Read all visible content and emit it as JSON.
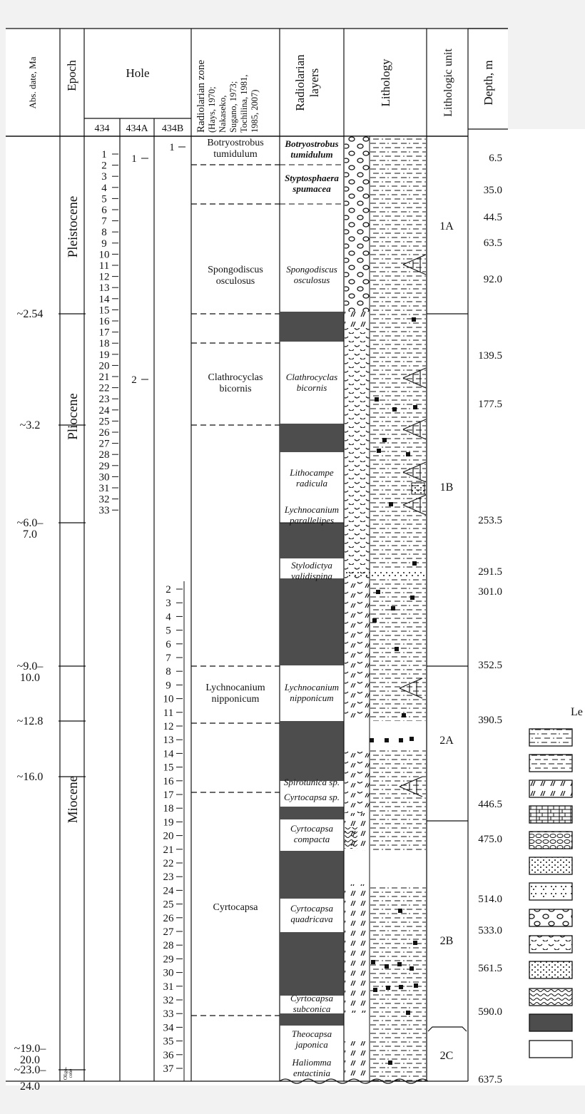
{
  "headers": {
    "abs_date": "Abs. date, Ma",
    "epoch": "Epoch",
    "hole": "Hole",
    "hole_cols": [
      "434",
      "434A",
      "434B"
    ],
    "zone_lines": [
      "Radiolarian zone",
      "(Hays, 1970;",
      "Nakaseko,",
      "Sugano, 1973;",
      "Tochilina, 1981,",
      "1985, 2007)"
    ],
    "layers_lines": [
      "Radiolarian",
      "layers"
    ],
    "lithology": "Lithology",
    "unit": "Lithologic unit",
    "depth": "Depth, m"
  },
  "legend_title": "Le",
  "ages": [
    {
      "lines": [
        "~2.54"
      ]
    },
    {
      "lines": [
        "~3.2"
      ]
    },
    {
      "lines": [
        "~6.0–",
        "7.0"
      ]
    },
    {
      "lines": [
        "~9.0–",
        "10.0"
      ]
    },
    {
      "lines": [
        "~12.8"
      ]
    },
    {
      "lines": [
        "~16.0"
      ]
    },
    {
      "lines": [
        "~19.0–",
        "20.0"
      ]
    },
    {
      "lines": [
        "~23.0–"
      ]
    },
    {
      "lines": [
        "24.0"
      ]
    }
  ],
  "epochs": [
    "Pleistocene",
    "Pliocene",
    "Miocene"
  ],
  "epoch_oligocene_lines": [
    "Oligo-",
    "cene"
  ],
  "hole434_cores": [
    "1",
    "2",
    "3",
    "4",
    "5",
    "6",
    "7",
    "8",
    "9",
    "10",
    "11",
    "12",
    "13",
    "14",
    "15",
    "16",
    "17",
    "18",
    "19",
    "20",
    "21",
    "22",
    "23",
    "24",
    "25",
    "26",
    "27",
    "28",
    "29",
    "30",
    "31",
    "32",
    "33"
  ],
  "hole434a_cores": [
    "1",
    "2"
  ],
  "hole434b_cores": [
    "1",
    "2",
    "3",
    "4",
    "5",
    "6",
    "7",
    "8",
    "9",
    "10",
    "11",
    "12",
    "13",
    "14",
    "15",
    "16",
    "17",
    "18",
    "19",
    "20",
    "21",
    "22",
    "23",
    "24",
    "25",
    "26",
    "27",
    "28",
    "29",
    "30",
    "31",
    "32",
    "33",
    "34",
    "35",
    "36",
    "37"
  ],
  "zones": [
    {
      "lines": [
        "Botryostrobus",
        "tumidulum"
      ]
    },
    {
      "lines": [
        "Spongodiscus",
        "osculosus"
      ]
    },
    {
      "lines": [
        "Clathrocyclas",
        "bicornis"
      ]
    },
    {
      "lines": [
        "Lychnocanium",
        "nipponicum"
      ]
    },
    {
      "lines": [
        "Cyrtocapsa"
      ]
    }
  ],
  "layers": [
    {
      "lines": [
        "Botryostrobus",
        "tumidulum"
      ]
    },
    {
      "lines": [
        "Styptosphaera",
        "spumacea"
      ]
    },
    {
      "lines": [
        "Spongodiscus",
        "osculosus"
      ]
    },
    {
      "lines": [
        "Clathrocyclas",
        "bicornis"
      ]
    },
    {
      "lines": [
        "Lithocampe",
        "radicula"
      ]
    },
    {
      "lines": [
        "Lychnocanium",
        "parallelipes"
      ]
    },
    {
      "lines": [
        "Stylodictya",
        "validispina"
      ]
    },
    {
      "lines": [
        "Lychnocanium",
        "nipponicum"
      ]
    },
    {
      "lines": [
        "Spirotunica sp."
      ]
    },
    {
      "lines": [
        "Cyrtocapsa sp."
      ]
    },
    {
      "lines": [
        "Cyrtocapsa",
        "compacta"
      ]
    },
    {
      "lines": [
        "Cyrtocapsa",
        "quadricava"
      ]
    },
    {
      "lines": [
        "Cyrtocapsa",
        "subconica"
      ]
    },
    {
      "lines": [
        "Theocapsa",
        "japonica"
      ]
    },
    {
      "lines": [
        "Haliomma",
        "entactinia"
      ]
    }
  ],
  "units": [
    "1A",
    "1B",
    "2A",
    "2B",
    "2C"
  ],
  "depths": [
    "6.5",
    "35.0",
    "44.5",
    "63.5",
    "92.0",
    "139.5",
    "177.5",
    "253.5",
    "291.5",
    "301.0",
    "352.5",
    "390.5",
    "446.5",
    "475.0",
    "514.0",
    "533.0",
    "561.5",
    "590.0",
    "637.5"
  ],
  "legend_items": [
    "silty-clay-pattern",
    "clay-pattern",
    "diatom-pattern",
    "limestone-pattern",
    "conglomerate-pattern",
    "sand-pattern",
    "silt-pattern",
    "pebble-pattern",
    "tuff-pattern",
    "concretion-pattern",
    "wavy-pattern",
    "gap-solid",
    "empty"
  ],
  "colors": {
    "gap": "#4d4d4d",
    "line": "#111111",
    "paper": "#ffffff",
    "background": "#f2f2f2"
  }
}
